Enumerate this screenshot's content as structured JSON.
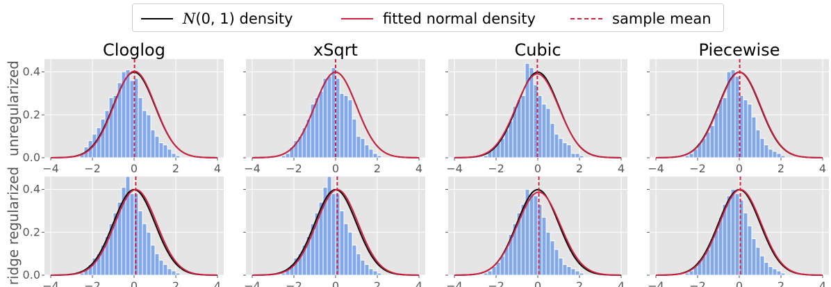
{
  "colors": {
    "panel_bg": "#e5e5e5",
    "grid": "#ffffff",
    "bars": "#83a8ea",
    "std_density": "#000000",
    "fitted_density": "#d0203f",
    "sample_mean": "#d0203f",
    "tick_text": "#555555"
  },
  "legend": {
    "placement": "top-center",
    "items": [
      {
        "label_pre": "N",
        "label_math": "(0, 1)",
        "label_post": " density",
        "style": "solid",
        "color": "#000000"
      },
      {
        "label": "fitted normal density",
        "style": "solid",
        "color": "#d0203f"
      },
      {
        "label": "sample mean",
        "style": "dashed",
        "color": "#d0203f"
      }
    ]
  },
  "columns": [
    "Cloglog",
    "xSqrt",
    "Cubic",
    "Piecewise"
  ],
  "rows": [
    "unregularized",
    "ridge regularized"
  ],
  "chart_data": {
    "type": "bar",
    "layout": "grid 2x4 of histograms with density overlays",
    "xlim": [
      -4.3,
      4.3
    ],
    "ylim": [
      0,
      0.46
    ],
    "xticks": [
      -4,
      -2,
      0,
      2,
      4
    ],
    "yticks": [
      0.0,
      0.2,
      0.4
    ],
    "bin_width": 0.2,
    "grid": true,
    "panels": [
      {
        "row": "unregularized",
        "col": "Cloglog",
        "bin_start": -2.6,
        "values": [
          0.02,
          0.05,
          0.08,
          0.11,
          0.14,
          0.18,
          0.22,
          0.28,
          0.29,
          0.35,
          0.4,
          0.41,
          0.36,
          0.37,
          0.28,
          0.22,
          0.2,
          0.13,
          0.1,
          0.07,
          0.06,
          0.04,
          0.02,
          0.01
        ],
        "fit_mean": 0.02,
        "fit_sd": 0.99,
        "mean": 0.02
      },
      {
        "row": "unregularized",
        "col": "xSqrt",
        "bin_start": -2.6,
        "values": [
          0.01,
          0.02,
          0.05,
          0.08,
          0.1,
          0.14,
          0.18,
          0.25,
          0.28,
          0.31,
          0.37,
          0.38,
          0.42,
          0.37,
          0.3,
          0.29,
          0.27,
          0.18,
          0.1,
          0.09,
          0.06,
          0.04,
          0.02,
          0.01
        ],
        "fit_mean": 0.0,
        "fit_sd": 1.0,
        "mean": 0.0
      },
      {
        "row": "unregularized",
        "col": "Cubic",
        "bin_start": -2.6,
        "values": [
          0.01,
          0.03,
          0.05,
          0.07,
          0.09,
          0.13,
          0.17,
          0.24,
          0.27,
          0.29,
          0.44,
          0.42,
          0.34,
          0.29,
          0.25,
          0.23,
          0.16,
          0.11,
          0.09,
          0.07,
          0.06,
          0.02,
          0.02,
          0.01
        ],
        "fit_mean": -0.02,
        "fit_sd": 1.02,
        "mean": -0.02
      },
      {
        "row": "unregularized",
        "col": "Piecewise",
        "bin_start": -2.6,
        "values": [
          0.01,
          0.02,
          0.04,
          0.07,
          0.09,
          0.12,
          0.15,
          0.21,
          0.27,
          0.28,
          0.4,
          0.41,
          0.38,
          0.29,
          0.27,
          0.25,
          0.19,
          0.13,
          0.09,
          0.06,
          0.04,
          0.03,
          0.02,
          0.01
        ],
        "fit_mean": 0.02,
        "fit_sd": 1.0,
        "mean": 0.02
      },
      {
        "row": "ridge regularized",
        "col": "Cloglog",
        "bin_start": -2.6,
        "values": [
          0.01,
          0.03,
          0.05,
          0.08,
          0.1,
          0.14,
          0.18,
          0.24,
          0.29,
          0.34,
          0.41,
          0.46,
          0.38,
          0.38,
          0.3,
          0.24,
          0.2,
          0.14,
          0.1,
          0.07,
          0.05,
          0.03,
          0.02,
          0.01
        ],
        "fit_mean": 0.08,
        "fit_sd": 1.0,
        "mean": 0.08
      },
      {
        "row": "ridge regularized",
        "col": "xSqrt",
        "bin_start": -2.6,
        "values": [
          0.01,
          0.03,
          0.05,
          0.08,
          0.1,
          0.14,
          0.18,
          0.24,
          0.29,
          0.34,
          0.41,
          0.46,
          0.38,
          0.38,
          0.3,
          0.24,
          0.2,
          0.14,
          0.1,
          0.07,
          0.05,
          0.03,
          0.02,
          0.01
        ],
        "fit_mean": 0.08,
        "fit_sd": 1.0,
        "mean": 0.08
      },
      {
        "row": "ridge regularized",
        "col": "Cubic",
        "bin_start": -2.6,
        "values": [
          0.01,
          0.02,
          0.04,
          0.06,
          0.09,
          0.13,
          0.19,
          0.24,
          0.29,
          0.33,
          0.4,
          0.38,
          0.37,
          0.33,
          0.27,
          0.2,
          0.16,
          0.12,
          0.08,
          0.05,
          0.04,
          0.03,
          0.02,
          0.01
        ],
        "fit_mean": 0.05,
        "fit_sd": 1.03,
        "mean": 0.05
      },
      {
        "row": "ridge regularized",
        "col": "Piecewise",
        "bin_start": -2.6,
        "values": [
          0.01,
          0.02,
          0.04,
          0.07,
          0.09,
          0.12,
          0.17,
          0.21,
          0.27,
          0.33,
          0.37,
          0.4,
          0.38,
          0.35,
          0.29,
          0.23,
          0.17,
          0.13,
          0.09,
          0.06,
          0.04,
          0.03,
          0.02,
          0.01
        ],
        "fit_mean": 0.05,
        "fit_sd": 1.0,
        "mean": 0.05
      }
    ]
  }
}
